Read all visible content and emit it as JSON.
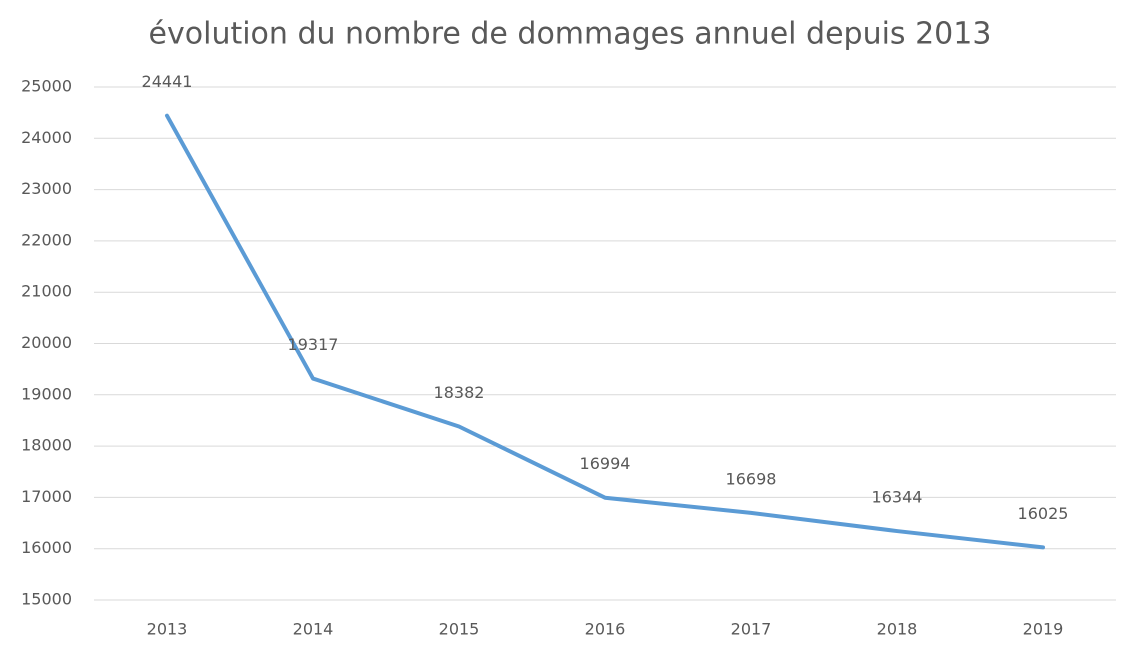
{
  "chart_data": {
    "type": "line",
    "title": "évolution du nombre de dommages annuel depuis 2013",
    "categories": [
      "2013",
      "2014",
      "2015",
      "2016",
      "2017",
      "2018",
      "2019"
    ],
    "values": [
      24441,
      19317,
      18382,
      16994,
      16698,
      16344,
      16025
    ],
    "color": "#5b9bd5",
    "ylim": [
      15000,
      25000
    ],
    "yticks": [
      15000,
      16000,
      17000,
      18000,
      19000,
      20000,
      21000,
      22000,
      23000,
      24000,
      25000
    ],
    "grid": true
  }
}
